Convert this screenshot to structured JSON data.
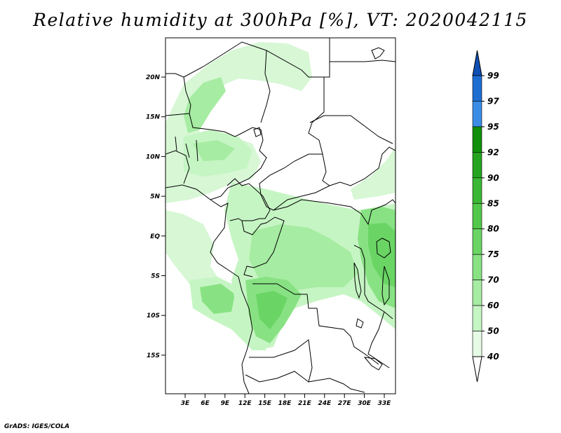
{
  "title": "Relative humidity at 300hPa [%], VT: 2020042115",
  "credit": "GrADS: IGES/COLA",
  "map": {
    "lat_labels": [
      "20N",
      "15N",
      "10N",
      "5N",
      "EQ",
      "5S",
      "10S",
      "15S"
    ],
    "lon_labels": [
      "3E",
      "6E",
      "9E",
      "12E",
      "15E",
      "18E",
      "21E",
      "24E",
      "27E",
      "30E",
      "33E"
    ],
    "lon_range": [
      0.5,
      34.5
    ],
    "lat_range": [
      -19.5,
      24.5
    ],
    "colors": {
      "land_border": "#000000",
      "background": "#ffffff"
    }
  },
  "colorbar": {
    "levels": [
      "40",
      "50",
      "60",
      "70",
      "75",
      "80",
      "85",
      "90",
      "92",
      "95",
      "97",
      "99"
    ],
    "bins": [
      {
        "range": "<40",
        "color": "#ffffff"
      },
      {
        "range": "40-50",
        "color": "#e6fbe6"
      },
      {
        "range": "50-60",
        "color": "#c6f5c4"
      },
      {
        "range": "60-70",
        "color": "#a6eca2"
      },
      {
        "range": "70-75",
        "color": "#88e283"
      },
      {
        "range": "75-80",
        "color": "#6ad564"
      },
      {
        "range": "80-85",
        "color": "#52c84b"
      },
      {
        "range": "85-90",
        "color": "#3ab734"
      },
      {
        "range": "90-92",
        "color": "#25a41f"
      },
      {
        "range": "92-95",
        "color": "#108f0a"
      },
      {
        "range": "95-97",
        "color": "#3b8ce6"
      },
      {
        "range": "97-99",
        "color": "#1e6ed2"
      },
      {
        "range": ">99",
        "color": "#1050b4"
      }
    ]
  }
}
